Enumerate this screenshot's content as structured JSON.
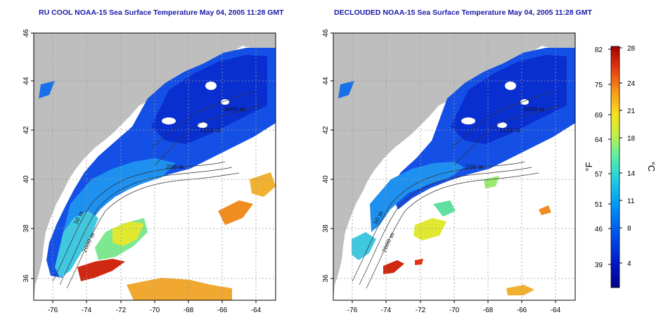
{
  "panels": [
    {
      "id": "left",
      "title": "RU COOL NOAA-15 Sea Surface Temperature May 04, 2005 11:28 GMT",
      "depth_labels": [
        "1000 m",
        "3000 m",
        "1000 m",
        "3000 m",
        "200 m",
        "50 m",
        "2000 m"
      ]
    },
    {
      "id": "right",
      "title": "DECLOUDED NOAA-15 Sea Surface Temperature May 04, 2005 11:28 GMT",
      "depth_labels": [
        "1000 m",
        "3000 m",
        "1000 m",
        "3000 m",
        "200 m",
        "50 m",
        "2000 m"
      ]
    }
  ],
  "axes": {
    "lat_ticks": [
      "36",
      "38",
      "40",
      "42",
      "44",
      "46"
    ],
    "lon_ticks": [
      "-76",
      "-74",
      "-72",
      "-70",
      "-68",
      "-66",
      "-64"
    ],
    "grid": true
  },
  "colorbar": {
    "fahrenheit_unit": "°F",
    "celsius_unit": "°C",
    "fahrenheit_ticks": [
      "82",
      "75",
      "69",
      "64",
      "57",
      "51",
      "46",
      "39"
    ],
    "celsius_ticks": [
      "28",
      "24",
      "21",
      "18",
      "14",
      "11",
      "8",
      "4"
    ],
    "colors": [
      "#00008a",
      "#0020d8",
      "#0068f0",
      "#00b0f0",
      "#30e0c0",
      "#a0f060",
      "#f0f020",
      "#f0a020",
      "#e04010",
      "#a00000"
    ]
  },
  "colors": {
    "land": "#bebebe",
    "no_data": "#ffffff",
    "title": "#1a1aa8"
  }
}
